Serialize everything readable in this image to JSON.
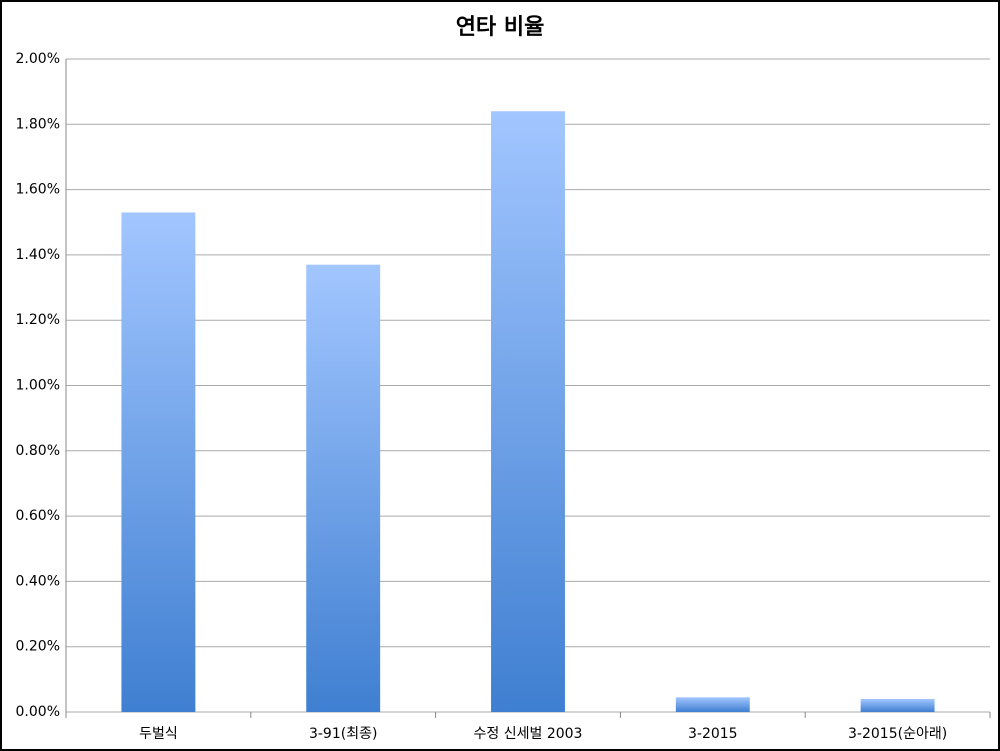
{
  "chart_data": {
    "type": "bar",
    "title": "연타 비율",
    "categories": [
      "두벌식",
      "3-91(최종)",
      "수정 신세벌 2003",
      "3-2015",
      "3-2015(순아래)"
    ],
    "values": [
      1.53,
      1.37,
      1.84,
      0.045,
      0.04
    ],
    "color": "#4a86d8",
    "ylim": [
      0,
      2
    ],
    "yticks": [
      {
        "value": 0,
        "label": "0.00%"
      },
      {
        "value": 0.2,
        "label": "0.20%"
      },
      {
        "value": 0.4,
        "label": "0.40%"
      },
      {
        "value": 0.6,
        "label": "0.60%"
      },
      {
        "value": 0.8,
        "label": "0.80%"
      },
      {
        "value": 1,
        "label": "1.00%"
      },
      {
        "value": 1.2,
        "label": "1.20%"
      },
      {
        "value": 1.4,
        "label": "1.40%"
      },
      {
        "value": 1.6,
        "label": "1.60%"
      },
      {
        "value": 1.8,
        "label": "1.80%"
      },
      {
        "value": 2,
        "label": "2.00%"
      }
    ],
    "grid": true
  }
}
